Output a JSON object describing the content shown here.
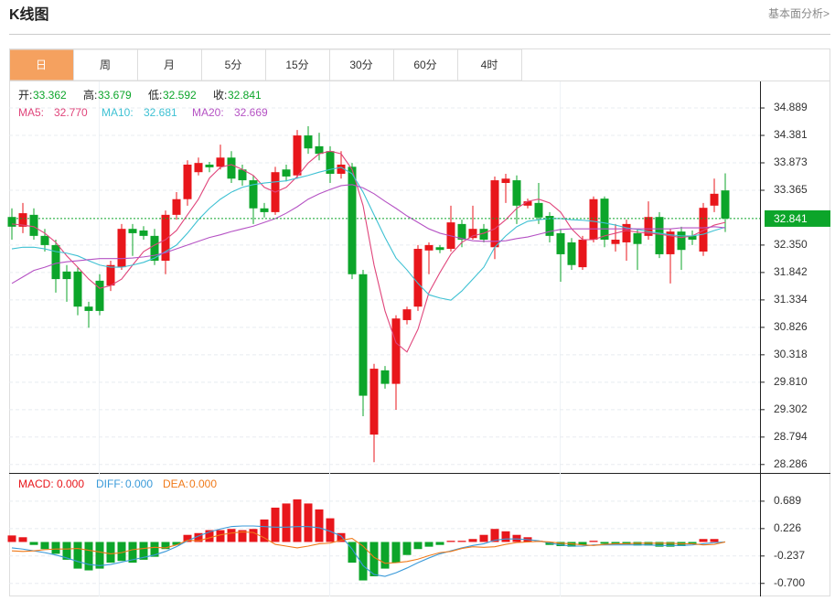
{
  "header": {
    "title": "K线图",
    "link": "基本面分析>"
  },
  "tabs": [
    "日",
    "周",
    "月",
    "5分",
    "15分",
    "30分",
    "60分",
    "4时"
  ],
  "chart_data": [
    {
      "type": "candlestick",
      "readout_labels": [
        "开:",
        "高:",
        "低:",
        "收:"
      ],
      "up_color": "#e8161b",
      "down_color": "#0ca52a",
      "open": [
        32.87,
        32.69,
        32.91,
        32.52,
        32.35,
        31.86,
        31.86,
        31.21,
        31.69,
        31.6,
        31.94,
        32.65,
        32.62,
        32.52,
        32.06,
        32.91,
        33.2,
        33.7,
        33.84,
        33.8,
        33.97,
        33.75,
        33.55,
        33.03,
        32.96,
        33.75,
        33.64,
        34.38,
        34.18,
        34.09,
        33.67,
        33.8,
        31.81,
        28.84,
        30.03,
        29.78,
        30.96,
        31.21,
        32.25,
        32.31,
        32.28,
        32.74,
        32.48,
        32.65,
        32.31,
        33.5,
        33.55,
        33.08,
        33.13,
        32.89,
        32.57,
        32.4,
        31.94,
        32.45,
        33.21,
        32.37,
        32.4,
        32.57,
        32.52,
        32.87,
        32.18,
        32.6,
        32.52,
        32.23,
        33.08,
        33.362
      ],
      "high": [
        33.03,
        33.13,
        33.03,
        32.65,
        32.45,
        31.98,
        31.94,
        31.3,
        31.81,
        32.06,
        32.74,
        32.74,
        32.7,
        32.65,
        32.99,
        33.33,
        33.92,
        33.97,
        33.89,
        34.21,
        34.09,
        33.84,
        33.64,
        33.13,
        33.8,
        33.84,
        34.48,
        34.55,
        34.43,
        34.18,
        34.09,
        33.87,
        31.89,
        30.15,
        30.11,
        31.05,
        31.21,
        32.35,
        32.4,
        32.35,
        33.08,
        32.82,
        33.08,
        32.74,
        33.62,
        33.67,
        33.64,
        33.21,
        33.5,
        32.96,
        32.65,
        32.48,
        32.52,
        33.25,
        33.25,
        32.74,
        32.82,
        32.65,
        33.16,
        32.96,
        32.65,
        32.69,
        32.62,
        33.13,
        33.58,
        33.679
      ],
      "low": [
        32.45,
        32.57,
        32.45,
        32.23,
        31.47,
        31.3,
        31.05,
        30.82,
        31.05,
        31.5,
        31.89,
        32.15,
        32.45,
        31.98,
        31.81,
        32.82,
        33.08,
        33.64,
        33.7,
        33.75,
        33.5,
        33.45,
        32.74,
        32.86,
        32.91,
        33.53,
        33.58,
        34.04,
        33.92,
        33.5,
        33.58,
        31.72,
        29.18,
        28.33,
        29.69,
        29.3,
        30.88,
        31.13,
        31.81,
        32.2,
        32.23,
        32.31,
        32.45,
        32.4,
        32.09,
        33.13,
        32.74,
        33.03,
        32.74,
        32.4,
        31.67,
        31.89,
        31.89,
        32.4,
        32.31,
        32.23,
        32.06,
        31.89,
        32.45,
        32.11,
        31.64,
        31.89,
        32.35,
        32.15,
        32.96,
        32.592
      ],
      "close": [
        32.69,
        32.94,
        32.52,
        32.35,
        31.72,
        31.72,
        31.21,
        31.13,
        31.13,
        31.98,
        32.65,
        32.57,
        32.52,
        32.06,
        32.91,
        33.2,
        33.84,
        33.87,
        33.79,
        33.97,
        33.58,
        33.55,
        33.03,
        32.96,
        33.7,
        33.62,
        34.38,
        34.14,
        34.04,
        33.67,
        33.84,
        31.81,
        29.56,
        30.06,
        29.78,
        30.99,
        31.16,
        32.28,
        32.35,
        32.26,
        32.77,
        32.45,
        32.65,
        32.45,
        33.55,
        33.58,
        33.08,
        33.16,
        32.86,
        32.52,
        32.18,
        31.98,
        32.45,
        33.2,
        32.45,
        32.45,
        32.74,
        32.37,
        32.87,
        32.18,
        32.6,
        32.26,
        32.45,
        33.04,
        33.3,
        32.841
      ],
      "series": [
        {
          "name": "MA5:",
          "color": "#e0457b",
          "last_label": "32.770",
          "values": [
            32.74,
            32.72,
            32.69,
            32.57,
            32.4,
            32.15,
            31.94,
            31.72,
            31.55,
            31.6,
            31.72,
            31.98,
            32.23,
            32.35,
            32.45,
            32.62,
            32.91,
            33.2,
            33.59,
            33.79,
            33.84,
            33.75,
            33.64,
            33.42,
            33.33,
            33.42,
            33.62,
            33.87,
            34.04,
            34.09,
            34.04,
            33.75,
            33.08,
            31.98,
            31.13,
            30.54,
            30.37,
            30.79,
            31.47,
            31.84,
            32.18,
            32.4,
            32.52,
            32.57,
            32.65,
            32.82,
            33.03,
            33.16,
            33.2,
            33.13,
            32.96,
            32.65,
            32.45,
            32.45,
            32.52,
            32.57,
            32.62,
            32.59,
            32.57,
            32.55,
            32.52,
            32.49,
            32.52,
            32.62,
            32.72,
            32.77
          ]
        },
        {
          "name": "MA10:",
          "color": "#3ec1d3",
          "last_label": "32.681",
          "values": [
            32.28,
            32.31,
            32.31,
            32.28,
            32.23,
            32.2,
            32.15,
            32.06,
            31.98,
            31.94,
            31.94,
            31.98,
            32.03,
            32.11,
            32.23,
            32.35,
            32.57,
            32.82,
            33.03,
            33.2,
            33.33,
            33.42,
            33.47,
            33.5,
            33.52,
            33.54,
            33.59,
            33.64,
            33.7,
            33.75,
            33.79,
            33.67,
            33.33,
            32.91,
            32.49,
            32.11,
            31.89,
            31.64,
            31.43,
            31.37,
            31.33,
            31.5,
            31.72,
            31.94,
            32.31,
            32.52,
            32.69,
            32.79,
            32.82,
            32.84,
            32.84,
            32.82,
            32.81,
            32.79,
            32.76,
            32.72,
            32.67,
            32.64,
            32.6,
            32.57,
            32.54,
            32.52,
            32.52,
            32.55,
            32.62,
            32.681
          ]
        },
        {
          "name": "MA20:",
          "color": "#b552c4",
          "last_label": "32.669",
          "values": [
            31.64,
            31.76,
            31.88,
            31.94,
            32.01,
            32.04,
            32.06,
            32.08,
            32.1,
            32.1,
            32.1,
            32.11,
            32.13,
            32.16,
            32.21,
            32.28,
            32.35,
            32.42,
            32.49,
            32.54,
            32.6,
            32.65,
            32.7,
            32.77,
            32.84,
            32.94,
            33.06,
            33.2,
            33.3,
            33.38,
            33.45,
            33.47,
            33.41,
            33.3,
            33.16,
            33.03,
            32.89,
            32.77,
            32.65,
            32.57,
            32.52,
            32.47,
            32.43,
            32.42,
            32.42,
            32.43,
            32.47,
            32.5,
            32.55,
            32.6,
            32.64,
            32.65,
            32.65,
            32.65,
            32.65,
            32.65,
            32.65,
            32.65,
            32.65,
            32.65,
            32.65,
            32.67,
            32.67,
            32.67,
            32.69,
            32.669
          ]
        }
      ],
      "ylim": [
        28.13,
        35.33
      ],
      "yticks": [
        34.889,
        34.381,
        33.873,
        33.365,
        {
          "value": 32.35,
          "label": "32.350"
        },
        31.842,
        31.334,
        30.826,
        30.318,
        {
          "value": 29.81,
          "label": "29.810"
        },
        29.302,
        28.794,
        28.286
      ],
      "grid": true
    },
    {
      "type": "macd",
      "up_color": "#e8161b",
      "down_color": "#0ca52a",
      "histogram": {
        "name": "MACD:",
        "color": "#e8161b",
        "last_label": "0.000",
        "values": [
          0.11,
          0.08,
          -0.05,
          -0.12,
          -0.2,
          -0.3,
          -0.45,
          -0.48,
          -0.45,
          -0.35,
          -0.32,
          -0.35,
          -0.3,
          -0.25,
          -0.12,
          -0.05,
          0.12,
          0.15,
          0.2,
          0.2,
          0.22,
          0.2,
          0.22,
          0.38,
          0.58,
          0.65,
          0.72,
          0.65,
          0.55,
          0.4,
          0.15,
          -0.35,
          -0.65,
          -0.58,
          -0.45,
          -0.35,
          -0.22,
          -0.12,
          -0.08,
          -0.05,
          0.02,
          0.02,
          0.05,
          0.12,
          0.22,
          0.18,
          0.12,
          0.08,
          0.02,
          -0.05,
          -0.07,
          -0.08,
          -0.05,
          0.02,
          -0.03,
          -0.04,
          -0.04,
          -0.06,
          -0.06,
          -0.08,
          -0.08,
          -0.07,
          -0.03,
          0.05,
          0.05,
          0
        ]
      },
      "series": [
        {
          "name": "DIFF:",
          "color": "#3a9ad9",
          "last_label": "0.000",
          "values": [
            -0.1,
            -0.12,
            -0.15,
            -0.18,
            -0.22,
            -0.27,
            -0.33,
            -0.38,
            -0.4,
            -0.38,
            -0.34,
            -0.3,
            -0.26,
            -0.22,
            -0.16,
            -0.08,
            0.02,
            0.1,
            0.17,
            0.22,
            0.26,
            0.27,
            0.27,
            0.26,
            0.25,
            0.25,
            0.26,
            0.26,
            0.24,
            0.18,
            0.1,
            -0.12,
            -0.4,
            -0.55,
            -0.58,
            -0.52,
            -0.44,
            -0.35,
            -0.27,
            -0.2,
            -0.15,
            -0.1,
            -0.06,
            -0.03,
            0.03,
            0.05,
            0.05,
            0.04,
            0.02,
            -0.02,
            -0.05,
            -0.07,
            -0.07,
            -0.05,
            -0.05,
            -0.05,
            -0.05,
            -0.05,
            -0.05,
            -0.06,
            -0.06,
            -0.06,
            -0.05,
            -0.03,
            -0.01,
            0
          ]
        },
        {
          "name": "DEA:",
          "color": "#f07a1a",
          "last_label": "0.000",
          "values": [
            -0.15,
            -0.16,
            -0.15,
            -0.13,
            -0.12,
            -0.12,
            -0.11,
            -0.14,
            -0.17,
            -0.2,
            -0.18,
            -0.13,
            -0.11,
            -0.09,
            -0.1,
            -0.05,
            0.03,
            0.02,
            0.07,
            0.12,
            0.15,
            0.17,
            0.16,
            0.07,
            -0.04,
            -0.07,
            -0.1,
            -0.07,
            -0.03,
            -0.02,
            0.03,
            0.06,
            -0.07,
            -0.26,
            -0.36,
            -0.35,
            -0.33,
            -0.29,
            -0.23,
            -0.18,
            -0.16,
            -0.11,
            -0.08,
            -0.09,
            -0.08,
            -0.04,
            -0.01,
            0,
            0.01,
            0,
            -0.02,
            -0.03,
            -0.05,
            -0.06,
            -0.04,
            -0.03,
            -0.03,
            -0.02,
            -0.02,
            -0.02,
            -0.02,
            -0.03,
            -0.03,
            -0.05,
            -0.04,
            0
          ]
        }
      ],
      "ylim": [
        -0.92,
        1.12
      ],
      "yticks": [
        0.689,
        0.226,
        -0.237,
        {
          "value": -0.7,
          "label": "-0.700"
        }
      ]
    }
  ]
}
